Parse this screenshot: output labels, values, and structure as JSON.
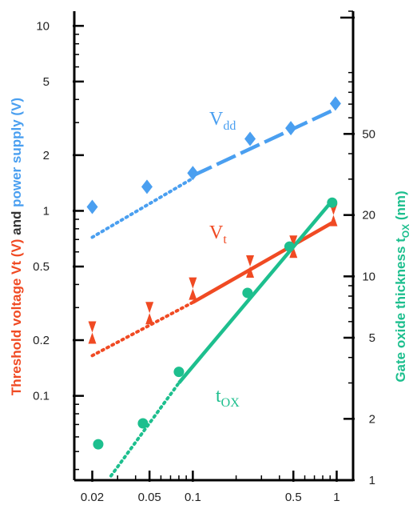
{
  "chart_data": {
    "type": "scatter",
    "x_axis": {
      "scale": "log",
      "range": [
        0.015,
        1.3
      ],
      "tick_labels": [
        "0.02",
        "0.05",
        "0.1",
        "0.5",
        "1"
      ],
      "tick_values": [
        0.02,
        0.05,
        0.1,
        0.5,
        1
      ]
    },
    "y_axis_left": {
      "scale": "log",
      "range": [
        0.035,
        12
      ],
      "tick_labels": [
        "10",
        "5",
        "2",
        "1",
        "0.5",
        "0.2",
        "0.1"
      ],
      "tick_values": [
        10,
        5,
        2,
        1,
        0.5,
        0.2,
        0.1
      ],
      "title_parts": [
        {
          "text": "Threshold voltage Vt (V)",
          "color": "#f04a23"
        },
        {
          "text": " and ",
          "color": "#333333"
        },
        {
          "text": "power supply (V)",
          "color": "#4a9ff0"
        }
      ]
    },
    "y_axis_right": {
      "scale": "log",
      "range": [
        1,
        200
      ],
      "tick_labels": [
        "50",
        "20",
        "10",
        "5",
        "2",
        "1"
      ],
      "tick_values": [
        50,
        20,
        10,
        5,
        2,
        1
      ],
      "title_main": "Gate oxide thickness t",
      "title_sub": "OX",
      "title_unit": " (nm)",
      "title_color": "#1dbf8e"
    },
    "series": [
      {
        "label_main": "V",
        "label_sub": "dd",
        "color": "#4a9ff0",
        "axis": "left",
        "marker": "diamond",
        "points": [
          [
            0.02,
            1.05
          ],
          [
            0.048,
            1.35
          ],
          [
            0.1,
            1.6
          ],
          [
            0.25,
            2.45
          ],
          [
            0.48,
            2.8
          ],
          [
            0.98,
            3.8
          ]
        ],
        "trend_dotted": [
          [
            0.02,
            0.72
          ],
          [
            0.1,
            1.5
          ]
        ],
        "trend_dashed": [
          [
            0.1,
            1.55
          ],
          [
            0.98,
            3.55
          ]
        ]
      },
      {
        "label_main": "V",
        "label_sub": "t",
        "color": "#f04a23",
        "axis": "left",
        "marker": "hourglass",
        "points": [
          [
            0.02,
            0.22
          ],
          [
            0.05,
            0.28
          ],
          [
            0.1,
            0.38
          ],
          [
            0.25,
            0.5
          ],
          [
            0.5,
            0.64
          ],
          [
            0.95,
            0.95
          ]
        ],
        "trend_dotted": [
          [
            0.02,
            0.165
          ],
          [
            0.1,
            0.32
          ]
        ],
        "trend_solid": [
          [
            0.1,
            0.32
          ],
          [
            0.95,
            0.87
          ]
        ]
      },
      {
        "label_main": "t",
        "label_sub": "OX",
        "color": "#1dbf8e",
        "axis": "right",
        "marker": "circle",
        "points": [
          [
            0.022,
            1.5
          ],
          [
            0.045,
            1.9
          ],
          [
            0.08,
            3.4
          ],
          [
            0.24,
            8.3
          ],
          [
            0.47,
            14
          ],
          [
            0.93,
            23
          ]
        ],
        "trend_dotted": [
          [
            0.027,
            1.05
          ],
          [
            0.08,
            3.0
          ]
        ],
        "trend_solid": [
          [
            0.08,
            3.0
          ],
          [
            0.93,
            23.5
          ]
        ]
      }
    ]
  }
}
